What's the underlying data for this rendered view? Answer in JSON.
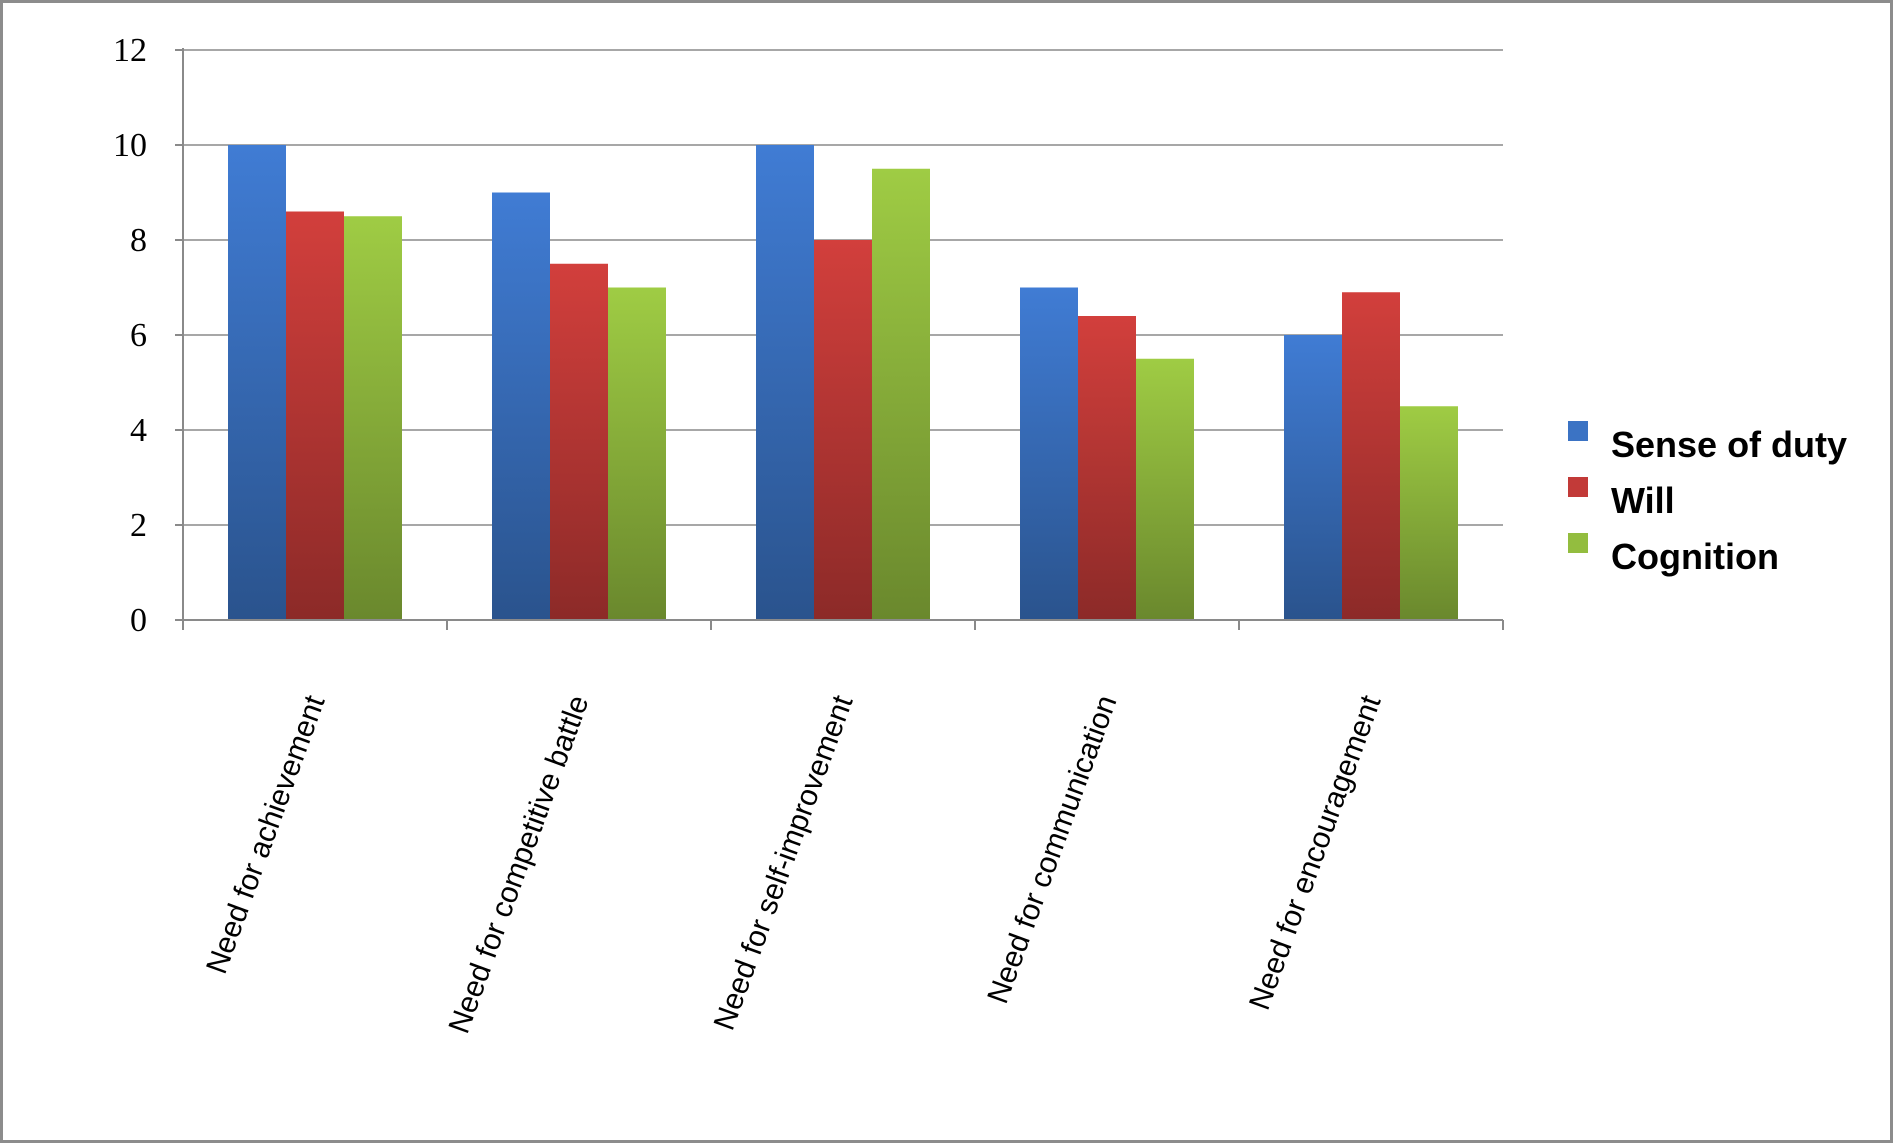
{
  "chart_data": {
    "type": "bar",
    "categories": [
      "Need for achievement",
      "Need for competitive battle",
      "Need for self-improvement",
      "Need for communication",
      "Need for encouragement"
    ],
    "series": [
      {
        "name": "Sense of duty",
        "color": "#3b73c4",
        "values": [
          10,
          9,
          10,
          7,
          6
        ]
      },
      {
        "name": "Will",
        "color": "#c23a38",
        "values": [
          8.6,
          7.5,
          8,
          6.4,
          6.9
        ]
      },
      {
        "name": "Cognition",
        "color": "#93bd3f",
        "values": [
          8.5,
          7,
          9.5,
          5.5,
          4.5
        ]
      }
    ],
    "yticks": [
      "0",
      "2",
      "4",
      "6",
      "8",
      "10",
      "12"
    ],
    "ylim": [
      0,
      12
    ],
    "grid": true,
    "legend": "right"
  }
}
